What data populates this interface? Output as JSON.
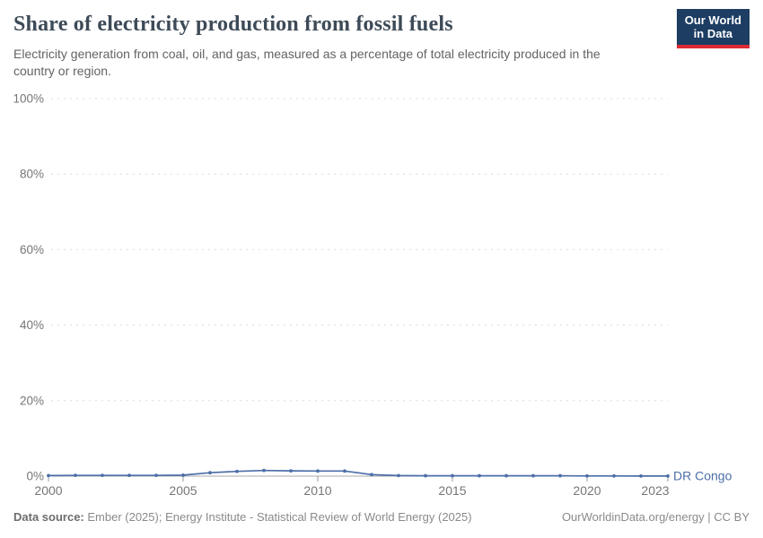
{
  "header": {
    "title": "Share of electricity production from fossil fuels",
    "subtitle": "Electricity generation from coal, oil, and gas, measured as a percentage of total electricity produced in the country or region.",
    "logo": {
      "line1": "Our World",
      "line2": "in Data",
      "bg_color": "#1d3d63",
      "accent_color": "#dc2b33"
    }
  },
  "chart_data": {
    "type": "line",
    "title": "Share of electricity production from fossil fuels",
    "xlabel": "",
    "ylabel": "",
    "x": [
      2000,
      2001,
      2002,
      2003,
      2004,
      2005,
      2006,
      2007,
      2008,
      2009,
      2010,
      2011,
      2012,
      2013,
      2014,
      2015,
      2016,
      2017,
      2018,
      2019,
      2020,
      2021,
      2022,
      2023
    ],
    "series": [
      {
        "name": "DR Congo",
        "color": "#4c6ea8",
        "values": [
          0.15,
          0.2,
          0.2,
          0.2,
          0.2,
          0.25,
          0.9,
          1.25,
          1.5,
          1.4,
          1.35,
          1.35,
          0.4,
          0.15,
          0.1,
          0.1,
          0.1,
          0.1,
          0.1,
          0.1,
          0.05,
          0.05,
          0.03,
          0.03
        ]
      }
    ],
    "ylim": [
      0,
      100
    ],
    "yticks": [
      0,
      20,
      40,
      60,
      80,
      100
    ],
    "ytick_suffix": "%",
    "xticks": [
      2000,
      2005,
      2010,
      2015,
      2020,
      2023
    ],
    "grid": "horizontal-dashed",
    "legend": "end-of-line-label",
    "grid_color": "#dcdcdc",
    "baseline_color": "#a9a9a9",
    "axis_text_color": "#767676"
  },
  "footer": {
    "source_label": "Data source:",
    "source_text": " Ember (2025); Energy Institute - Statistical Review of World Energy (2025)",
    "right_text": "OurWorldinData.org/energy | CC BY"
  }
}
